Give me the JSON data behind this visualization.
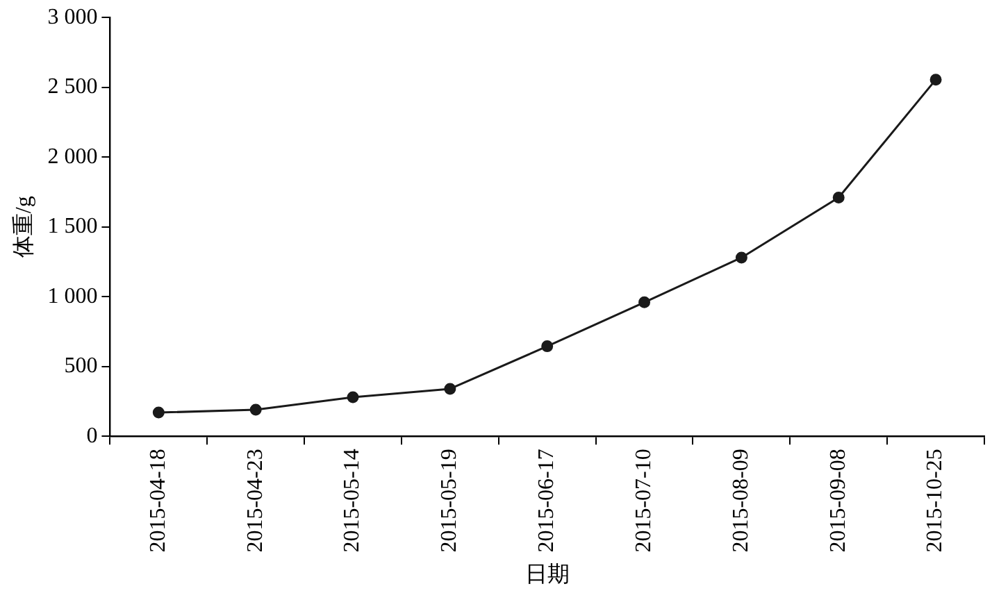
{
  "chart_data": {
    "type": "line",
    "xlabel": "日期",
    "ylabel": "体重/g",
    "categories": [
      "2015-04-18",
      "2015-04-23",
      "2015-05-14",
      "2015-05-19",
      "2015-06-17",
      "2015-07-10",
      "2015-08-09",
      "2015-09-08",
      "2015-10-25"
    ],
    "series": [
      {
        "color": "#1a1a1a",
        "values": [
          170,
          190,
          280,
          340,
          645,
          960,
          1280,
          1710,
          2555
        ]
      }
    ],
    "ylim": [
      0,
      3000
    ],
    "yticks": [
      0,
      500,
      {
        "value": 1000,
        "label": "1 000"
      },
      {
        "value": 1500,
        "label": "1 500"
      },
      {
        "value": 2000,
        "label": "2 000"
      },
      {
        "value": 2500,
        "label": "2 500"
      },
      {
        "value": 3000,
        "label": "3 000"
      }
    ],
    "grid": false,
    "legend": false,
    "marker": "circle",
    "line_style": "solid"
  }
}
